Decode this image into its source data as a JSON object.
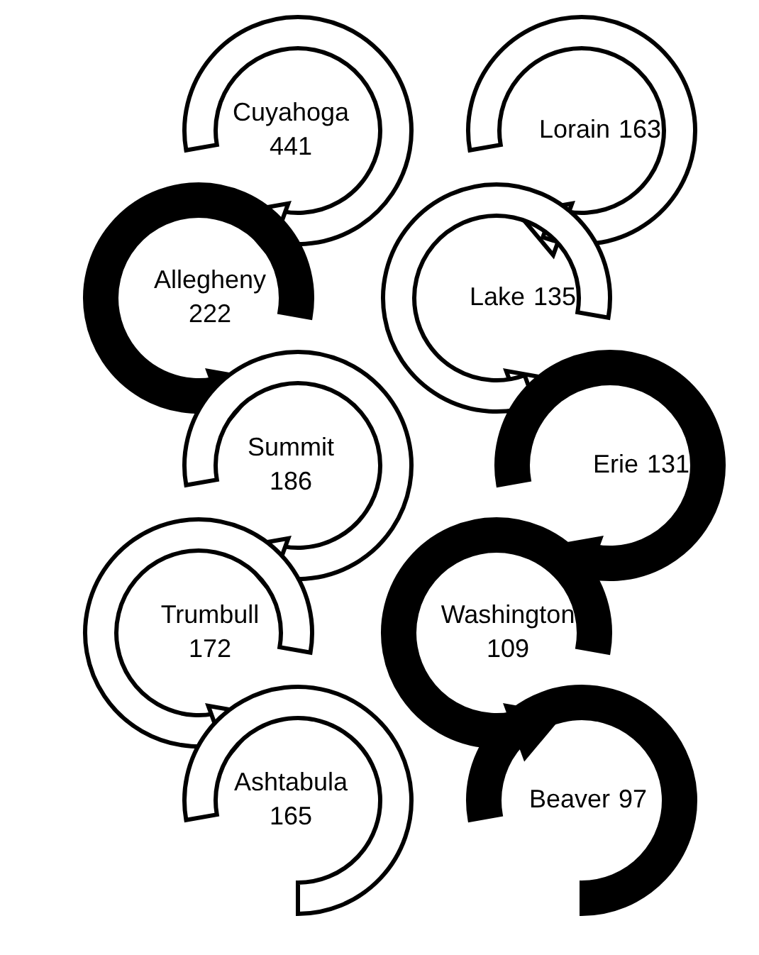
{
  "chart_data": {
    "type": "other",
    "data_labels": true,
    "categories": [
      "Cuyahoga",
      "Allegheny",
      "Summit",
      "Trumbull",
      "Ashtabula",
      "Lorain",
      "Lake",
      "Erie",
      "Washington",
      "Beaver"
    ],
    "values": [
      441,
      222,
      186,
      172,
      165,
      163,
      135,
      131,
      109,
      97
    ],
    "colors": [
      "#ffffff",
      "#000000",
      "#ffffff",
      "#ffffff",
      "#ffffff",
      "#ffffff",
      "#ffffff",
      "#000000",
      "#000000",
      "#000000"
    ]
  }
}
